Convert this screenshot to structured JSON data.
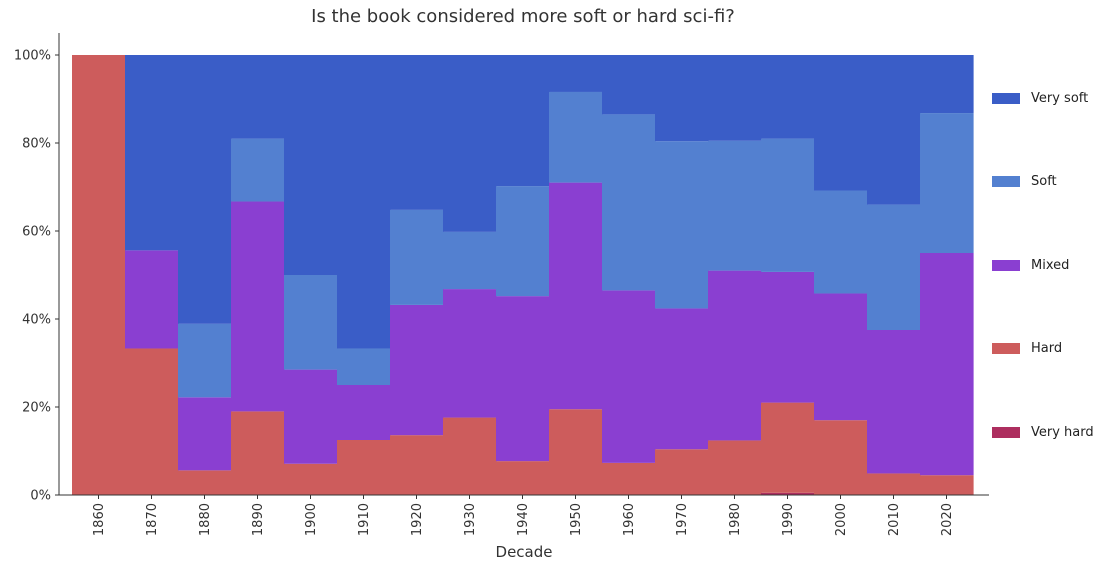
{
  "chart_data": {
    "type": "bar",
    "stacked": true,
    "normalized": true,
    "title": "Is the book considered more soft or hard sci-fi?",
    "xlabel": "Decade",
    "ylabel": "",
    "ylim": [
      0,
      1
    ],
    "y_tick_labels": [
      "0%",
      "20%",
      "40%",
      "60%",
      "80%",
      "100%"
    ],
    "categories": [
      "1860",
      "1870",
      "1880",
      "1890",
      "1900",
      "1910",
      "1920",
      "1930",
      "1940",
      "1950",
      "1960",
      "1970",
      "1980",
      "1990",
      "2000",
      "2010",
      "2020"
    ],
    "legend_position": "right",
    "grid": false,
    "series": [
      {
        "name": "Very hard",
        "color": "#ad2e5f",
        "values": [
          0,
          0,
          0,
          0,
          0,
          0,
          0,
          0,
          0,
          0,
          0,
          0,
          0,
          0.005,
          0,
          0,
          0
        ]
      },
      {
        "name": "Hard",
        "color": "#cd5c5c",
        "values": [
          1.0,
          0.333,
          0.056,
          0.19,
          0.071,
          0.125,
          0.136,
          0.176,
          0.077,
          0.195,
          0.073,
          0.104,
          0.124,
          0.205,
          0.17,
          0.049,
          0.045
        ]
      },
      {
        "name": "Mixed",
        "color": "#8a3fd1",
        "values": [
          0,
          0.223,
          0.166,
          0.477,
          0.214,
          0.125,
          0.296,
          0.292,
          0.375,
          0.515,
          0.392,
          0.32,
          0.386,
          0.297,
          0.288,
          0.326,
          0.505
        ]
      },
      {
        "name": "Soft",
        "color": "#5380d0",
        "values": [
          0,
          0,
          0.167,
          0.143,
          0.215,
          0.083,
          0.216,
          0.13,
          0.25,
          0.206,
          0.4,
          0.38,
          0.295,
          0.303,
          0.234,
          0.285,
          0.318
        ]
      },
      {
        "name": "Very soft",
        "color": "#3a5dc7",
        "values": [
          0,
          0.444,
          0.611,
          0.19,
          0.5,
          0.667,
          0.352,
          0.402,
          0.298,
          0.084,
          0.135,
          0.196,
          0.195,
          0.19,
          0.308,
          0.34,
          0.132
        ]
      }
    ],
    "legend_order": [
      "Very soft",
      "Soft",
      "Mixed",
      "Hard",
      "Very hard"
    ]
  }
}
